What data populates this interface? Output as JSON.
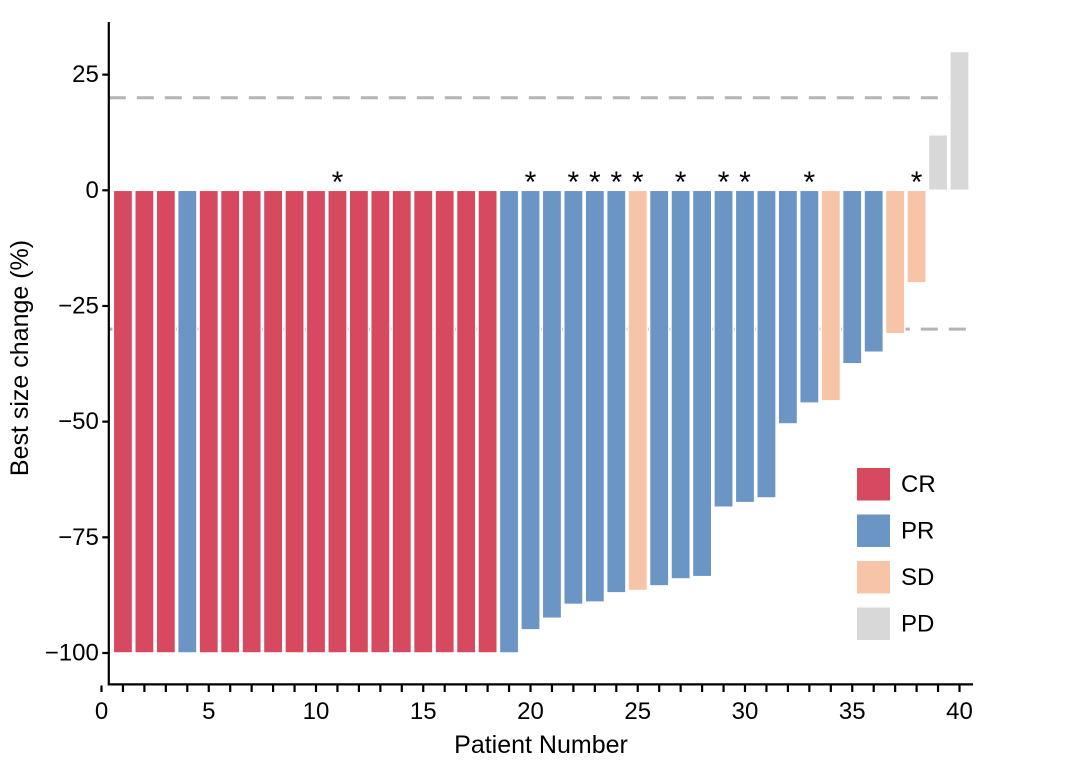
{
  "figure_title": "",
  "chart_data": {
    "type": "bar",
    "subtype": "waterfall-best-response",
    "title": "",
    "xlabel": "Patient Number",
    "ylabel": "Best size change (%)",
    "x_tick_labels": [
      0,
      5,
      10,
      15,
      20,
      25,
      30,
      35,
      40
    ],
    "x_minor_tick_range": [
      0,
      40
    ],
    "x_minor_tick_step": 1,
    "y_ticks": [
      25,
      0,
      -25,
      -50,
      -75,
      -100
    ],
    "ylim": [
      -107,
      36
    ],
    "xlim": [
      0,
      41
    ],
    "grid": false,
    "reference_lines": [
      20,
      -30
    ],
    "reference_line_color": "#b4b4b4",
    "significance_marker": "*",
    "legend_position": "inside-right",
    "legend": [
      {
        "code": "CR",
        "color": "#d6495f"
      },
      {
        "code": "PR",
        "color": "#6b95c5"
      },
      {
        "code": "SD",
        "color": "#f7c4a7"
      },
      {
        "code": "PD",
        "color": "#d8d8d8"
      }
    ],
    "patients": [
      {
        "patient": 1,
        "change": -100,
        "response": "CR",
        "asterisk": false
      },
      {
        "patient": 2,
        "change": -100,
        "response": "CR",
        "asterisk": false
      },
      {
        "patient": 3,
        "change": -100,
        "response": "CR",
        "asterisk": false
      },
      {
        "patient": 4,
        "change": -100,
        "response": "PR",
        "asterisk": false
      },
      {
        "patient": 5,
        "change": -100,
        "response": "CR",
        "asterisk": false
      },
      {
        "patient": 6,
        "change": -100,
        "response": "CR",
        "asterisk": false
      },
      {
        "patient": 7,
        "change": -100,
        "response": "CR",
        "asterisk": false
      },
      {
        "patient": 8,
        "change": -100,
        "response": "CR",
        "asterisk": false
      },
      {
        "patient": 9,
        "change": -100,
        "response": "CR",
        "asterisk": false
      },
      {
        "patient": 10,
        "change": -100,
        "response": "CR",
        "asterisk": false
      },
      {
        "patient": 11,
        "change": -100,
        "response": "CR",
        "asterisk": true
      },
      {
        "patient": 12,
        "change": -100,
        "response": "CR",
        "asterisk": false
      },
      {
        "patient": 13,
        "change": -100,
        "response": "CR",
        "asterisk": false
      },
      {
        "patient": 14,
        "change": -100,
        "response": "CR",
        "asterisk": false
      },
      {
        "patient": 15,
        "change": -100,
        "response": "CR",
        "asterisk": false
      },
      {
        "patient": 16,
        "change": -100,
        "response": "CR",
        "asterisk": false
      },
      {
        "patient": 17,
        "change": -100,
        "response": "CR",
        "asterisk": false
      },
      {
        "patient": 18,
        "change": -100,
        "response": "CR",
        "asterisk": false
      },
      {
        "patient": 19,
        "change": -100,
        "response": "PR",
        "asterisk": false
      },
      {
        "patient": 20,
        "change": -95,
        "response": "PR",
        "asterisk": true
      },
      {
        "patient": 21,
        "change": -92.5,
        "response": "PR",
        "asterisk": false
      },
      {
        "patient": 22,
        "change": -89.5,
        "response": "PR",
        "asterisk": true
      },
      {
        "patient": 23,
        "change": -89,
        "response": "PR",
        "asterisk": true
      },
      {
        "patient": 24,
        "change": -87,
        "response": "PR",
        "asterisk": true
      },
      {
        "patient": 25,
        "change": -86.5,
        "response": "SD",
        "asterisk": true
      },
      {
        "patient": 26,
        "change": -85.5,
        "response": "PR",
        "asterisk": false
      },
      {
        "patient": 27,
        "change": -84,
        "response": "PR",
        "asterisk": true
      },
      {
        "patient": 28,
        "change": -83.5,
        "response": "PR",
        "asterisk": false
      },
      {
        "patient": 29,
        "change": -68.5,
        "response": "PR",
        "asterisk": true
      },
      {
        "patient": 30,
        "change": -67.5,
        "response": "PR",
        "asterisk": true
      },
      {
        "patient": 31,
        "change": -66.5,
        "response": "PR",
        "asterisk": false
      },
      {
        "patient": 32,
        "change": -50.5,
        "response": "PR",
        "asterisk": false
      },
      {
        "patient": 33,
        "change": -46,
        "response": "PR",
        "asterisk": true
      },
      {
        "patient": 34,
        "change": -45.5,
        "response": "SD",
        "asterisk": false
      },
      {
        "patient": 35,
        "change": -37.5,
        "response": "PR",
        "asterisk": false
      },
      {
        "patient": 36,
        "change": -35,
        "response": "PR",
        "asterisk": false
      },
      {
        "patient": 37,
        "change": -31,
        "response": "SD",
        "asterisk": false
      },
      {
        "patient": 38,
        "change": -20,
        "response": "SD",
        "asterisk": true
      },
      {
        "patient": 39,
        "change": 12,
        "response": "PD",
        "asterisk": false
      },
      {
        "patient": 40,
        "change": 30,
        "response": "PD",
        "asterisk": false
      }
    ]
  }
}
